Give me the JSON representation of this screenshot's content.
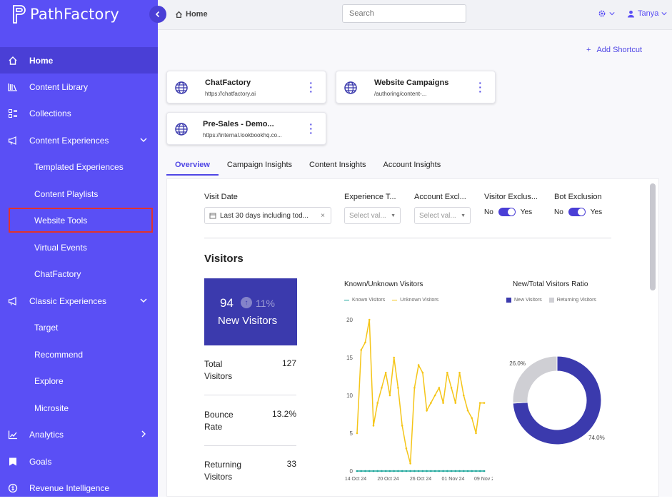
{
  "brand": {
    "name": "PathFactory"
  },
  "header": {
    "breadcrumb": "Home",
    "search_placeholder": "Search",
    "user": "Tanya"
  },
  "sidebar": {
    "items": [
      {
        "label": "Home",
        "icon": "home-icon"
      },
      {
        "label": "Content Library",
        "icon": "library-icon"
      },
      {
        "label": "Collections",
        "icon": "collections-icon"
      },
      {
        "label": "Content Experiences",
        "icon": "megaphone-icon"
      },
      {
        "label": "Templated Experiences"
      },
      {
        "label": "Content Playlists"
      },
      {
        "label": "Website Tools"
      },
      {
        "label": "Virtual Events"
      },
      {
        "label": "ChatFactory"
      },
      {
        "label": "Classic Experiences",
        "icon": "megaphone-icon"
      },
      {
        "label": "Target"
      },
      {
        "label": "Recommend"
      },
      {
        "label": "Explore"
      },
      {
        "label": "Microsite"
      },
      {
        "label": "Analytics",
        "icon": "chart-icon"
      },
      {
        "label": "Goals",
        "icon": "goal-icon"
      },
      {
        "label": "Revenue Intelligence",
        "icon": "revenue-icon"
      }
    ]
  },
  "main": {
    "add_shortcut": "Add Shortcut",
    "shortcuts": [
      {
        "title": "ChatFactory",
        "url": "https://chatfactory.ai"
      },
      {
        "title": "Website Campaigns",
        "url": "/authoring/content-..."
      },
      {
        "title": "Pre-Sales - Demo...",
        "url": "https://internal.lookbookhq.co..."
      }
    ],
    "tabs": [
      "Overview",
      "Campaign Insights",
      "Content Insights",
      "Account Insights"
    ]
  },
  "filters": {
    "visit_date": {
      "label": "Visit Date",
      "value": "Last 30 days including tod..."
    },
    "experience_type": {
      "label": "Experience T...",
      "placeholder": "Select val..."
    },
    "account_exclusion": {
      "label": "Account Excl...",
      "placeholder": "Select val..."
    },
    "visitor_exclusion": {
      "label": "Visitor Exclus...",
      "no": "No",
      "yes": "Yes"
    },
    "bot_exclusion": {
      "label": "Bot Exclusion",
      "no": "No",
      "yes": "Yes"
    }
  },
  "visitors": {
    "heading": "Visitors",
    "new_visitors": {
      "value": "94",
      "change": "11%",
      "label": "New Visitors"
    },
    "stats": [
      {
        "label": "Total Visitors",
        "value": "127"
      },
      {
        "label": "Bounce Rate",
        "value": "13.2%"
      },
      {
        "label": "Returning Visitors",
        "value": "33"
      }
    ]
  },
  "chart_data": [
    {
      "type": "line",
      "title": "Known/Unknown Visitors",
      "x_tick_labels": [
        "14 Oct 24",
        "20 Oct 24",
        "26 Oct 24",
        "01 Nov 24",
        "09 Nov 24"
      ],
      "y_ticks": [
        "0",
        "5",
        "10",
        "15",
        "20"
      ],
      "ylim": [
        0,
        20
      ],
      "series": [
        {
          "name": "Known Visitors",
          "color": "#1aa59a",
          "values": [
            0,
            0,
            0,
            0,
            0,
            0,
            0,
            0,
            0,
            0,
            0,
            0,
            0,
            0,
            0,
            0,
            0,
            0,
            0,
            0,
            0,
            0,
            0,
            0,
            0,
            0,
            0,
            0,
            0,
            0,
            0,
            0
          ]
        },
        {
          "name": "Unknown Visitors",
          "color": "#f5c518",
          "values": [
            5,
            16,
            17,
            20,
            6,
            9,
            11,
            13,
            10,
            15,
            11,
            6,
            3,
            1,
            11,
            14,
            13,
            8,
            9,
            10,
            11,
            9,
            13,
            11,
            9,
            13,
            10,
            8,
            7,
            5,
            9,
            9
          ]
        }
      ]
    },
    {
      "type": "pie",
      "title": "New/Total Visitors Ratio",
      "series": [
        {
          "name": "New Visitors",
          "value": 74.0,
          "label": "74.0%",
          "color": "#3b3aad"
        },
        {
          "name": "Returning Visitors",
          "value": 26.0,
          "label": "26.0%",
          "color": "#cfcfd4"
        }
      ]
    }
  ]
}
